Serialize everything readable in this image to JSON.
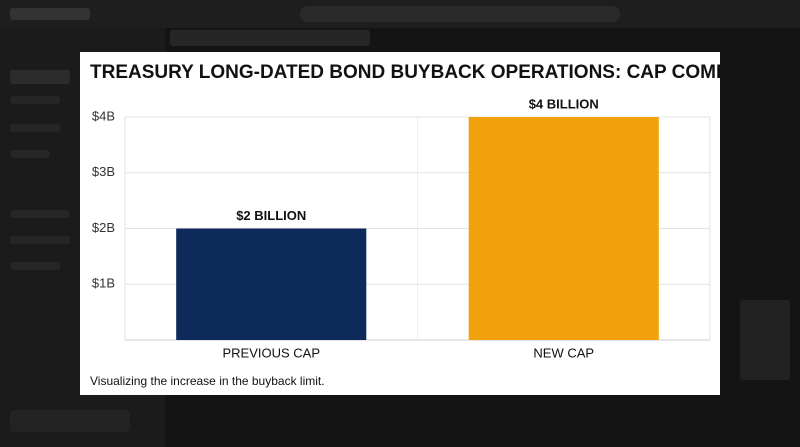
{
  "chart_data": {
    "type": "bar",
    "title": "TREASURY LONG-DATED BOND BUYBACK OPERATIONS: CAP COMPARISON",
    "caption": "Visualizing the increase in the buyback limit.",
    "categories": [
      "PREVIOUS CAP",
      "NEW CAP"
    ],
    "values": [
      2,
      4
    ],
    "value_labels": [
      "$2 BILLION",
      "$4 BILLION"
    ],
    "colors": [
      "#0e2a5a",
      "#f2a20d"
    ],
    "ylim": [
      0,
      4
    ],
    "yticks": [
      {
        "value": 1,
        "label": "$1B"
      },
      {
        "value": 2,
        "label": "$2B"
      },
      {
        "value": 3,
        "label": "$3B"
      },
      {
        "value": 4,
        "label": "$4B"
      }
    ],
    "grid": true
  }
}
